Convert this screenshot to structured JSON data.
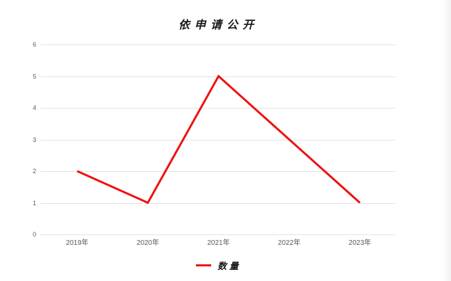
{
  "chart_data": {
    "type": "line",
    "title": "依申请公开",
    "categories": [
      "2019年",
      "2020年",
      "2021年",
      "2022年",
      "2023年"
    ],
    "series": [
      {
        "name": "数量",
        "values": [
          2,
          1,
          5,
          3,
          1
        ],
        "color": "#ee1111"
      }
    ],
    "yticks": [
      0,
      1,
      2,
      3,
      4,
      5,
      6
    ],
    "ylim": [
      0,
      6
    ],
    "xlabel": "",
    "ylabel": "",
    "grid": true,
    "legend_position": "bottom",
    "colors": {
      "series_red": "#ee1111",
      "gridline": "#e3e3e3",
      "tick_label": "#595959",
      "title_text": "#1a1a1a",
      "background": "#ffffff"
    }
  }
}
